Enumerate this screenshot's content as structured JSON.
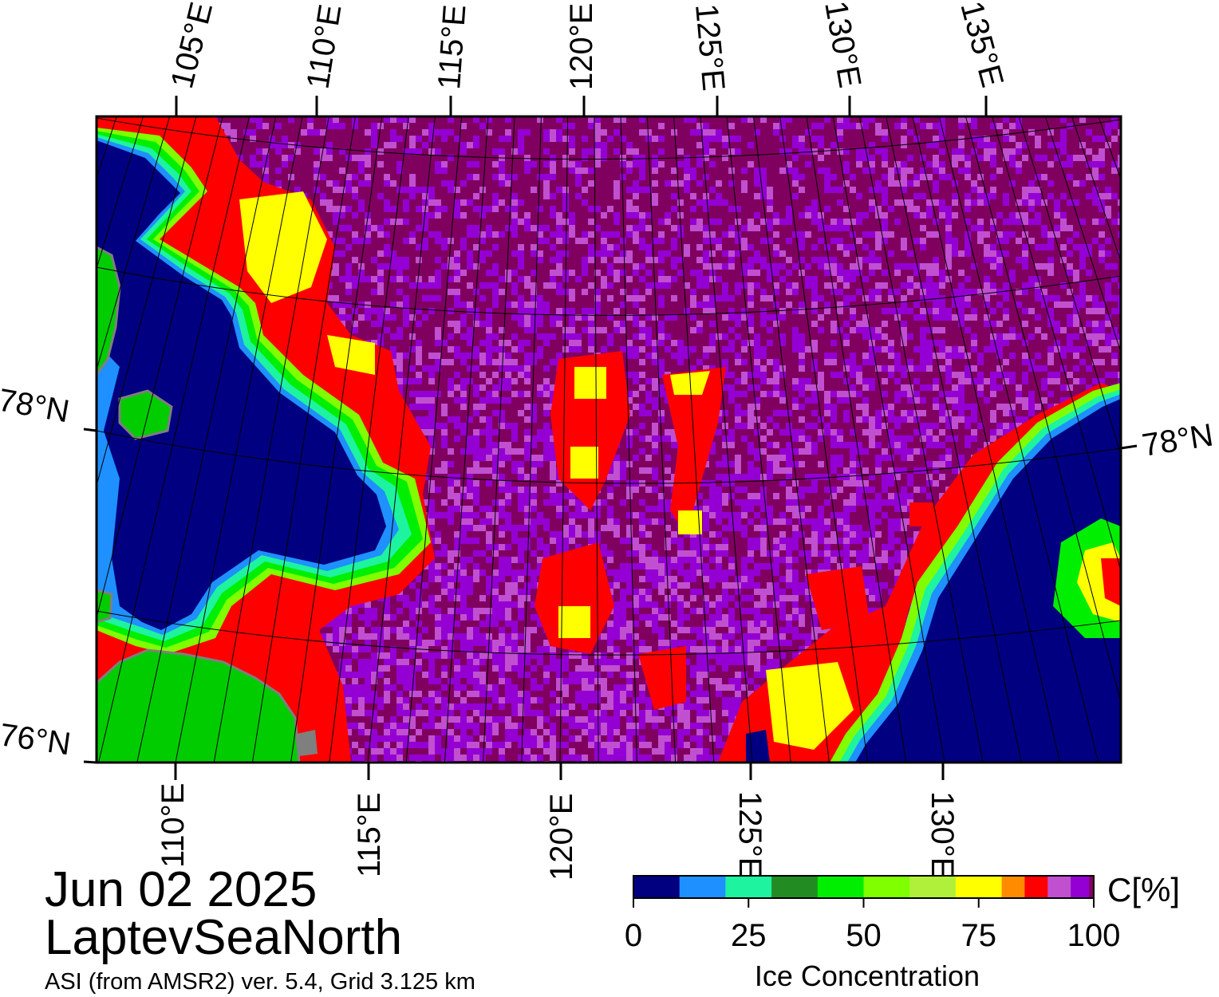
{
  "map": {
    "date": "Jun 02 2025",
    "region": "LaptevSeaNorth",
    "product_line": "ASI (from AMSR2) ver. 5.4,  Grid 3.125 km",
    "top_lon_labels": [
      "105°E",
      "110°E",
      "115°E",
      "120°E",
      "125°E",
      "130°E",
      "135°E"
    ],
    "bottom_lon_labels": [
      "110°E",
      "115°E",
      "120°E",
      "125°E",
      "130°E"
    ],
    "left_lat_labels": [
      "78°N",
      "76°N"
    ],
    "right_lat_labels": [
      "78°N"
    ],
    "land_color": "#00cc00",
    "land_edge_color": "#7f7f7f",
    "graticule_color": "#000000"
  },
  "colorbar": {
    "title": "Ice Concentration",
    "unit": "C[%]",
    "min": 0,
    "max": 100,
    "ticks": [
      0,
      25,
      50,
      75,
      100
    ],
    "tick_labels": [
      "0",
      "25",
      "50",
      "75",
      "100"
    ],
    "bins": [
      {
        "from": 0,
        "to": 10,
        "color": "#000080"
      },
      {
        "from": 10,
        "to": 20,
        "color": "#1e90ff"
      },
      {
        "from": 20,
        "to": 30,
        "color": "#1ef3a0"
      },
      {
        "from": 30,
        "to": 40,
        "color": "#228b22"
      },
      {
        "from": 40,
        "to": 50,
        "color": "#00ee00"
      },
      {
        "from": 50,
        "to": 60,
        "color": "#7fff00"
      },
      {
        "from": 60,
        "to": 70,
        "color": "#b0f03a"
      },
      {
        "from": 70,
        "to": 80,
        "color": "#ffff00"
      },
      {
        "from": 80,
        "to": 85,
        "color": "#ff8c00"
      },
      {
        "from": 85,
        "to": 90,
        "color": "#ff0000"
      },
      {
        "from": 90,
        "to": 95,
        "color": "#c050d0"
      },
      {
        "from": 95,
        "to": 99,
        "color": "#9400d3"
      },
      {
        "from": 99,
        "to": 100,
        "color": "#800060"
      }
    ]
  }
}
